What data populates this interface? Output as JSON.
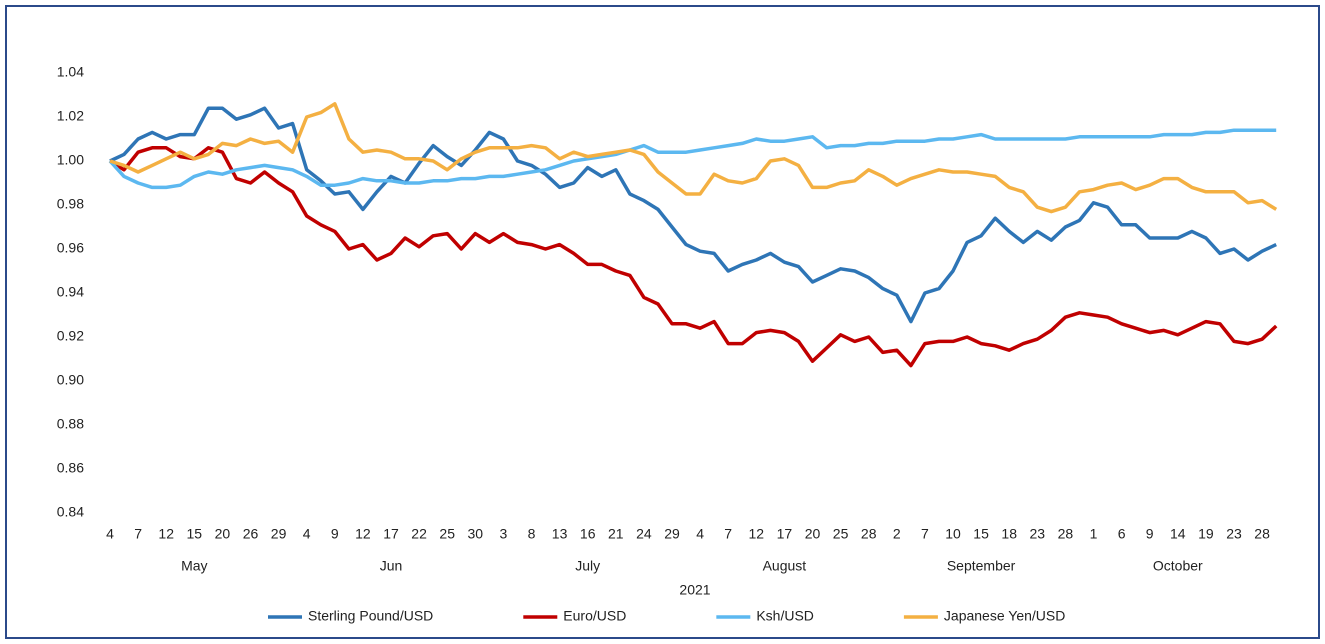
{
  "chart_data": {
    "type": "line",
    "categories": [
      "4",
      null,
      "7",
      null,
      "12",
      null,
      "15",
      null,
      "20",
      null,
      "26",
      null,
      "29",
      null,
      "4",
      null,
      "9",
      null,
      "12",
      null,
      "17",
      null,
      "22",
      null,
      "25",
      null,
      "30",
      null,
      "3",
      null,
      "8",
      null,
      "13",
      null,
      "16",
      null,
      "21",
      null,
      "24",
      null,
      "29",
      null,
      "4",
      null,
      "7",
      null,
      "12",
      null,
      "17",
      null,
      "20",
      null,
      "25",
      null,
      "28",
      null,
      "2",
      null,
      "7",
      null,
      "10",
      null,
      "15",
      null,
      "18",
      null,
      "23",
      null,
      "28",
      null,
      "1",
      null,
      "6",
      null,
      "9",
      null,
      "14",
      null,
      "19",
      null,
      "23",
      null,
      "28",
      null
    ],
    "months": [
      "May",
      "Jun",
      "July",
      "August",
      "September",
      "October"
    ],
    "x_label": "2021",
    "ylim": [
      0.84,
      1.04
    ],
    "yticks": [
      0.84,
      0.86,
      0.88,
      {
        "value": 0.9,
        "label": "0.90"
      },
      0.92,
      0.94,
      0.96,
      0.98,
      {
        "value": 1,
        "label": "1.00"
      },
      1.02,
      1.04
    ],
    "series": [
      {
        "name": "Sterling Pound/USD",
        "color": "#2e75b6",
        "values": [
          1.0,
          1.003,
          1.01,
          1.013,
          1.01,
          1.012,
          1.012,
          1.024,
          1.024,
          1.019,
          1.021,
          1.024,
          1.015,
          1.017,
          0.996,
          0.991,
          0.985,
          0.986,
          0.978,
          0.986,
          0.993,
          0.99,
          0.999,
          1.007,
          1.002,
          0.998,
          1.005,
          1.013,
          1.01,
          1.0,
          0.998,
          0.994,
          0.988,
          0.99,
          0.997,
          0.993,
          0.996,
          0.985,
          0.982,
          0.978,
          0.97,
          0.962,
          0.959,
          0.958,
          0.95,
          0.953,
          0.955,
          0.958,
          0.954,
          0.952,
          0.945,
          0.948,
          0.951,
          0.95,
          0.947,
          0.942,
          0.939,
          0.927,
          0.94,
          0.942,
          0.95,
          0.963,
          0.966,
          0.974,
          0.968,
          0.963,
          0.968,
          0.964,
          0.97,
          0.973,
          0.981,
          0.979,
          0.971,
          0.971,
          0.965,
          0.965,
          0.965,
          0.968,
          0.965,
          0.958,
          0.96,
          0.955,
          0.959,
          0.962
        ]
      },
      {
        "name": "Euro/USD",
        "color": "#c00000",
        "values": [
          1.0,
          0.996,
          1.004,
          1.006,
          1.006,
          1.002,
          1.001,
          1.006,
          1.004,
          0.992,
          0.99,
          0.995,
          0.99,
          0.986,
          0.975,
          0.971,
          0.968,
          0.96,
          0.962,
          0.955,
          0.958,
          0.965,
          0.961,
          0.966,
          0.967,
          0.96,
          0.967,
          0.963,
          0.967,
          0.963,
          0.962,
          0.96,
          0.962,
          0.958,
          0.953,
          0.953,
          0.95,
          0.948,
          0.938,
          0.935,
          0.926,
          0.926,
          0.924,
          0.927,
          0.917,
          0.917,
          0.922,
          0.923,
          0.922,
          0.918,
          0.909,
          0.915,
          0.921,
          0.918,
          0.92,
          0.913,
          0.914,
          0.907,
          0.917,
          0.918,
          0.918,
          0.92,
          0.917,
          0.916,
          0.914,
          0.917,
          0.919,
          0.923,
          0.929,
          0.931,
          0.93,
          0.929,
          0.926,
          0.924,
          0.922,
          0.923,
          0.921,
          0.924,
          0.927,
          0.926,
          0.918,
          0.917,
          0.919,
          0.925
        ]
      },
      {
        "name": "Ksh/USD",
        "color": "#5cb8f0",
        "values": [
          1.0,
          0.993,
          0.99,
          0.988,
          0.988,
          0.989,
          0.993,
          0.995,
          0.994,
          0.996,
          0.997,
          0.998,
          0.997,
          0.996,
          0.993,
          0.989,
          0.989,
          0.99,
          0.992,
          0.991,
          0.991,
          0.99,
          0.99,
          0.991,
          0.991,
          0.992,
          0.992,
          0.993,
          0.993,
          0.994,
          0.995,
          0.996,
          0.998,
          1.0,
          1.001,
          1.002,
          1.003,
          1.005,
          1.007,
          1.004,
          1.004,
          1.004,
          1.005,
          1.006,
          1.007,
          1.008,
          1.01,
          1.009,
          1.009,
          1.01,
          1.011,
          1.006,
          1.007,
          1.007,
          1.008,
          1.008,
          1.009,
          1.009,
          1.009,
          1.01,
          1.01,
          1.011,
          1.012,
          1.01,
          1.01,
          1.01,
          1.01,
          1.01,
          1.01,
          1.011,
          1.011,
          1.011,
          1.011,
          1.011,
          1.011,
          1.012,
          1.012,
          1.012,
          1.013,
          1.013,
          1.014,
          1.014,
          1.014,
          1.014
        ]
      },
      {
        "name": "Japanese Yen/USD",
        "color": "#f4b042",
        "values": [
          1.0,
          0.998,
          0.995,
          0.998,
          1.001,
          1.004,
          1.001,
          1.003,
          1.008,
          1.007,
          1.01,
          1.008,
          1.009,
          1.004,
          1.02,
          1.022,
          1.026,
          1.01,
          1.004,
          1.005,
          1.004,
          1.001,
          1.001,
          1.0,
          0.996,
          1.001,
          1.004,
          1.006,
          1.006,
          1.006,
          1.007,
          1.006,
          1.001,
          1.004,
          1.002,
          1.003,
          1.004,
          1.005,
          1.003,
          0.995,
          0.99,
          0.985,
          0.985,
          0.994,
          0.991,
          0.99,
          0.992,
          1.0,
          1.001,
          0.998,
          0.988,
          0.988,
          0.99,
          0.991,
          0.996,
          0.993,
          0.989,
          0.992,
          0.994,
          0.996,
          0.995,
          0.995,
          0.994,
          0.993,
          0.988,
          0.986,
          0.979,
          0.977,
          0.979,
          0.986,
          0.987,
          0.989,
          0.99,
          0.987,
          0.989,
          0.992,
          0.992,
          0.988,
          0.986,
          0.986,
          0.986,
          0.981,
          0.982,
          0.978
        ]
      }
    ],
    "legend": "bottom"
  }
}
